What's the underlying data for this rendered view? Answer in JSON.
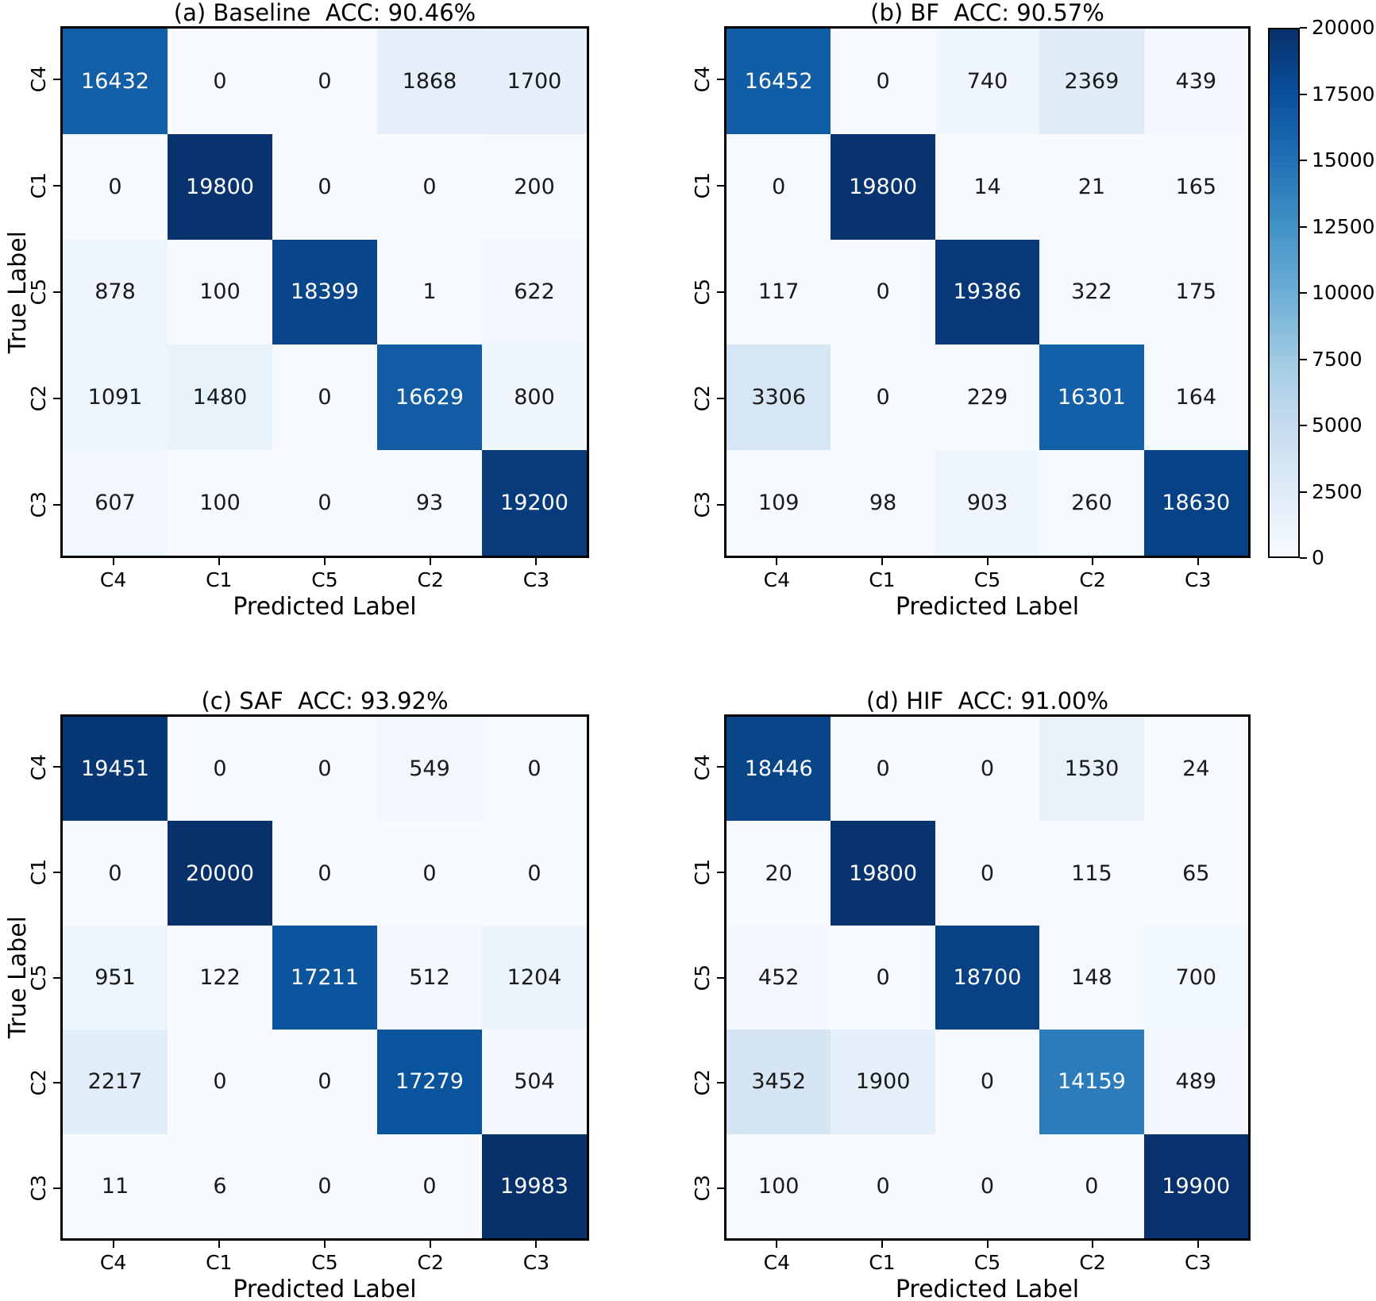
{
  "figure": {
    "background": "#ffffff"
  },
  "chart_data": [
    {
      "id": "a",
      "type": "heatmap",
      "title": "(a) Baseline  ACC: 90.46%",
      "method": "Baseline",
      "accuracy": "90.46%",
      "xlabel": "Predicted Label",
      "ylabel": "True Label",
      "x_categories": [
        "C4",
        "C1",
        "C5",
        "C2",
        "C3"
      ],
      "y_categories": [
        "C4",
        "C1",
        "C5",
        "C2",
        "C3"
      ],
      "values": [
        [
          16432,
          0,
          0,
          1868,
          1700
        ],
        [
          0,
          19800,
          0,
          0,
          200
        ],
        [
          878,
          100,
          18399,
          1,
          622
        ],
        [
          1091,
          1480,
          0,
          16629,
          800
        ],
        [
          607,
          100,
          0,
          93,
          19200
        ]
      ],
      "vmin": 0,
      "vmax": 20000,
      "colormap": "Blues",
      "show_ylabel": true
    },
    {
      "id": "b",
      "type": "heatmap",
      "title": "(b) BF  ACC: 90.57%",
      "method": "BF",
      "accuracy": "90.57%",
      "xlabel": "Predicted Label",
      "ylabel": "True Label",
      "x_categories": [
        "C4",
        "C1",
        "C5",
        "C2",
        "C3"
      ],
      "y_categories": [
        "C4",
        "C1",
        "C5",
        "C2",
        "C3"
      ],
      "values": [
        [
          16452,
          0,
          740,
          2369,
          439
        ],
        [
          0,
          19800,
          14,
          21,
          165
        ],
        [
          117,
          0,
          19386,
          322,
          175
        ],
        [
          3306,
          0,
          229,
          16301,
          164
        ],
        [
          109,
          98,
          903,
          260,
          18630
        ]
      ],
      "vmin": 0,
      "vmax": 20000,
      "colormap": "Blues",
      "show_ylabel": false
    },
    {
      "id": "c",
      "type": "heatmap",
      "title": "(c) SAF  ACC: 93.92%",
      "method": "SAF",
      "accuracy": "93.92%",
      "xlabel": "Predicted Label",
      "ylabel": "True Label",
      "x_categories": [
        "C4",
        "C1",
        "C5",
        "C2",
        "C3"
      ],
      "y_categories": [
        "C4",
        "C1",
        "C5",
        "C2",
        "C3"
      ],
      "values": [
        [
          19451,
          0,
          0,
          549,
          0
        ],
        [
          0,
          20000,
          0,
          0,
          0
        ],
        [
          951,
          122,
          17211,
          512,
          1204
        ],
        [
          2217,
          0,
          0,
          17279,
          504
        ],
        [
          11,
          6,
          0,
          0,
          19983
        ]
      ],
      "vmin": 0,
      "vmax": 20000,
      "colormap": "Blues",
      "show_ylabel": true
    },
    {
      "id": "d",
      "type": "heatmap",
      "title": "(d) HIF  ACC: 91.00%",
      "method": "HIF",
      "accuracy": "91.00%",
      "xlabel": "Predicted Label",
      "ylabel": "True Label",
      "x_categories": [
        "C4",
        "C1",
        "C5",
        "C2",
        "C3"
      ],
      "y_categories": [
        "C4",
        "C1",
        "C5",
        "C2",
        "C3"
      ],
      "values": [
        [
          18446,
          0,
          0,
          1530,
          24
        ],
        [
          20,
          19800,
          0,
          115,
          65
        ],
        [
          452,
          0,
          18700,
          148,
          700
        ],
        [
          3452,
          1900,
          0,
          14159,
          489
        ],
        [
          100,
          0,
          0,
          0,
          19900
        ]
      ],
      "vmin": 0,
      "vmax": 20000,
      "colormap": "Blues",
      "show_ylabel": false
    }
  ],
  "colorbar": {
    "vmin": 0,
    "vmax": 20000,
    "tick_labels": [
      "0",
      "2500",
      "5000",
      "7500",
      "10000",
      "12500",
      "15000",
      "17500",
      "20000"
    ],
    "gradient_stops": [
      "#f7fbff",
      "#deebf7",
      "#c6dbef",
      "#9ecae1",
      "#6baed6",
      "#4292c6",
      "#2171b5",
      "#08519c",
      "#08306b"
    ]
  },
  "annotation_text_colors": {
    "on_light": "#1a1a1a",
    "on_dark": "#ffffff"
  }
}
